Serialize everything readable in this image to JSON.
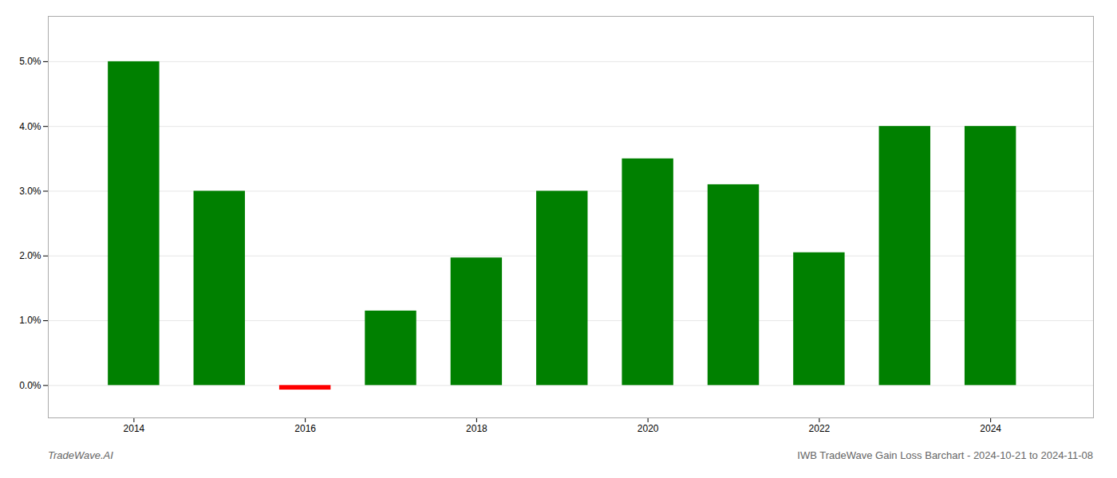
{
  "chart_data": {
    "type": "bar",
    "x": [
      2014,
      2015,
      2016,
      2017,
      2018,
      2019,
      2020,
      2021,
      2022,
      2023,
      2024
    ],
    "values": [
      0.05,
      0.03,
      -0.0007,
      0.0115,
      0.0197,
      0.03,
      0.035,
      0.031,
      0.0205,
      0.04,
      0.04
    ],
    "colors": [
      "#008000",
      "#008000",
      "#ff0000",
      "#008000",
      "#008000",
      "#008000",
      "#008000",
      "#008000",
      "#008000",
      "#008000",
      "#008000"
    ],
    "xlim": [
      2013.0,
      2025.2
    ],
    "xticks": [
      2014,
      2016,
      2018,
      2020,
      2022,
      2024
    ],
    "ylim": [
      -0.005,
      0.057
    ],
    "yticks": [
      {
        "value": 0,
        "label": "0.0%"
      },
      {
        "value": 0.01,
        "label": "1.0%"
      },
      {
        "value": 0.02,
        "label": "2.0%"
      },
      {
        "value": 0.03,
        "label": "3.0%"
      },
      {
        "value": 0.04,
        "label": "4.0%"
      },
      {
        "value": 0.05,
        "label": "5.0%"
      }
    ],
    "grid": "y",
    "annotations": [
      "TradeWave.AI",
      "IWB TradeWave Gain Loss Barchart - 2024-10-21 to 2024-11-08"
    ]
  }
}
